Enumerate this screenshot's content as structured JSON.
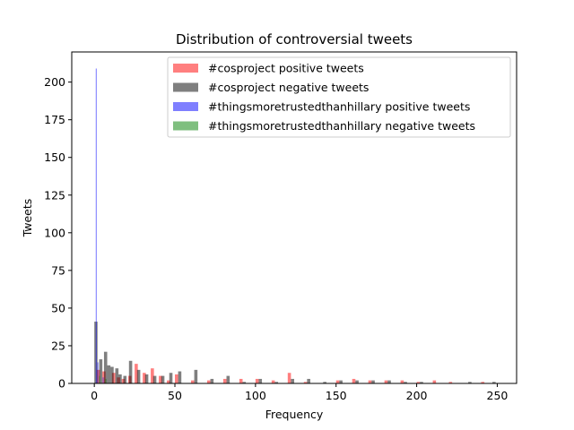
{
  "chart_data": {
    "type": "bar",
    "title": "Distribution of controversial tweets",
    "xlabel": "Frequency",
    "ylabel": "Tweets",
    "xlim": [
      -14,
      262
    ],
    "ylim": [
      0,
      220
    ],
    "xticks": [
      0,
      50,
      100,
      150,
      200,
      250
    ],
    "yticks": [
      0,
      25,
      50,
      75,
      100,
      125,
      150,
      175,
      200
    ],
    "legend_position": "top-right",
    "grid": false,
    "series": [
      {
        "name": "#cosproject positive tweets",
        "color": "#ff0000",
        "opacity": 0.5,
        "bar_width": 2.0,
        "points": [
          {
            "x": 2.5,
            "y": 9
          },
          {
            "x": 6,
            "y": 8
          },
          {
            "x": 12,
            "y": 7
          },
          {
            "x": 15,
            "y": 4
          },
          {
            "x": 18,
            "y": 3
          },
          {
            "x": 22,
            "y": 5
          },
          {
            "x": 26,
            "y": 13
          },
          {
            "x": 31,
            "y": 7
          },
          {
            "x": 36,
            "y": 10
          },
          {
            "x": 41,
            "y": 5
          },
          {
            "x": 46,
            "y": 2
          },
          {
            "x": 51,
            "y": 6
          },
          {
            "x": 61,
            "y": 2
          },
          {
            "x": 71,
            "y": 2
          },
          {
            "x": 81,
            "y": 3
          },
          {
            "x": 91,
            "y": 3
          },
          {
            "x": 101,
            "y": 3
          },
          {
            "x": 111,
            "y": 2
          },
          {
            "x": 121,
            "y": 7
          },
          {
            "x": 131,
            "y": 1
          },
          {
            "x": 151,
            "y": 2
          },
          {
            "x": 161,
            "y": 3
          },
          {
            "x": 171,
            "y": 2
          },
          {
            "x": 181,
            "y": 2
          },
          {
            "x": 191,
            "y": 2
          },
          {
            "x": 201,
            "y": 1
          },
          {
            "x": 211,
            "y": 2
          },
          {
            "x": 221,
            "y": 1
          },
          {
            "x": 241,
            "y": 1
          }
        ]
      },
      {
        "name": "#cosproject negative tweets",
        "color": "#000000",
        "opacity": 0.5,
        "bar_width": 2.0,
        "points": [
          {
            "x": 1,
            "y": 41
          },
          {
            "x": 4,
            "y": 16
          },
          {
            "x": 7,
            "y": 21
          },
          {
            "x": 9,
            "y": 12
          },
          {
            "x": 11,
            "y": 11
          },
          {
            "x": 14,
            "y": 10
          },
          {
            "x": 16,
            "y": 6
          },
          {
            "x": 19,
            "y": 5
          },
          {
            "x": 22.5,
            "y": 15
          },
          {
            "x": 27.5,
            "y": 9
          },
          {
            "x": 32.5,
            "y": 6
          },
          {
            "x": 37.5,
            "y": 5
          },
          {
            "x": 42.5,
            "y": 5
          },
          {
            "x": 47.5,
            "y": 7
          },
          {
            "x": 53,
            "y": 8
          },
          {
            "x": 63,
            "y": 9
          },
          {
            "x": 73,
            "y": 3
          },
          {
            "x": 83,
            "y": 5
          },
          {
            "x": 93,
            "y": 1
          },
          {
            "x": 103,
            "y": 3
          },
          {
            "x": 113,
            "y": 1
          },
          {
            "x": 123,
            "y": 3
          },
          {
            "x": 133,
            "y": 3
          },
          {
            "x": 143,
            "y": 1
          },
          {
            "x": 153,
            "y": 2
          },
          {
            "x": 163,
            "y": 2
          },
          {
            "x": 173,
            "y": 2
          },
          {
            "x": 183,
            "y": 2
          },
          {
            "x": 193,
            "y": 1
          },
          {
            "x": 203,
            "y": 1
          },
          {
            "x": 233,
            "y": 1
          },
          {
            "x": 248,
            "y": 1
          }
        ]
      },
      {
        "name": "#thingsmoretrustedthanhillary positive tweets",
        "color": "#0000ff",
        "opacity": 0.5,
        "bar_width": 0.6,
        "points": [
          {
            "x": 1.2,
            "y": 209
          },
          {
            "x": 2.2,
            "y": 14
          },
          {
            "x": 5.5,
            "y": 4
          }
        ]
      },
      {
        "name": "#thingsmoretrustedthanhillary negative tweets",
        "color": "#008000",
        "opacity": 0.5,
        "bar_width": 0.6,
        "points": [
          {
            "x": 3.2,
            "y": 5
          },
          {
            "x": 7.2,
            "y": 3
          }
        ]
      }
    ]
  }
}
